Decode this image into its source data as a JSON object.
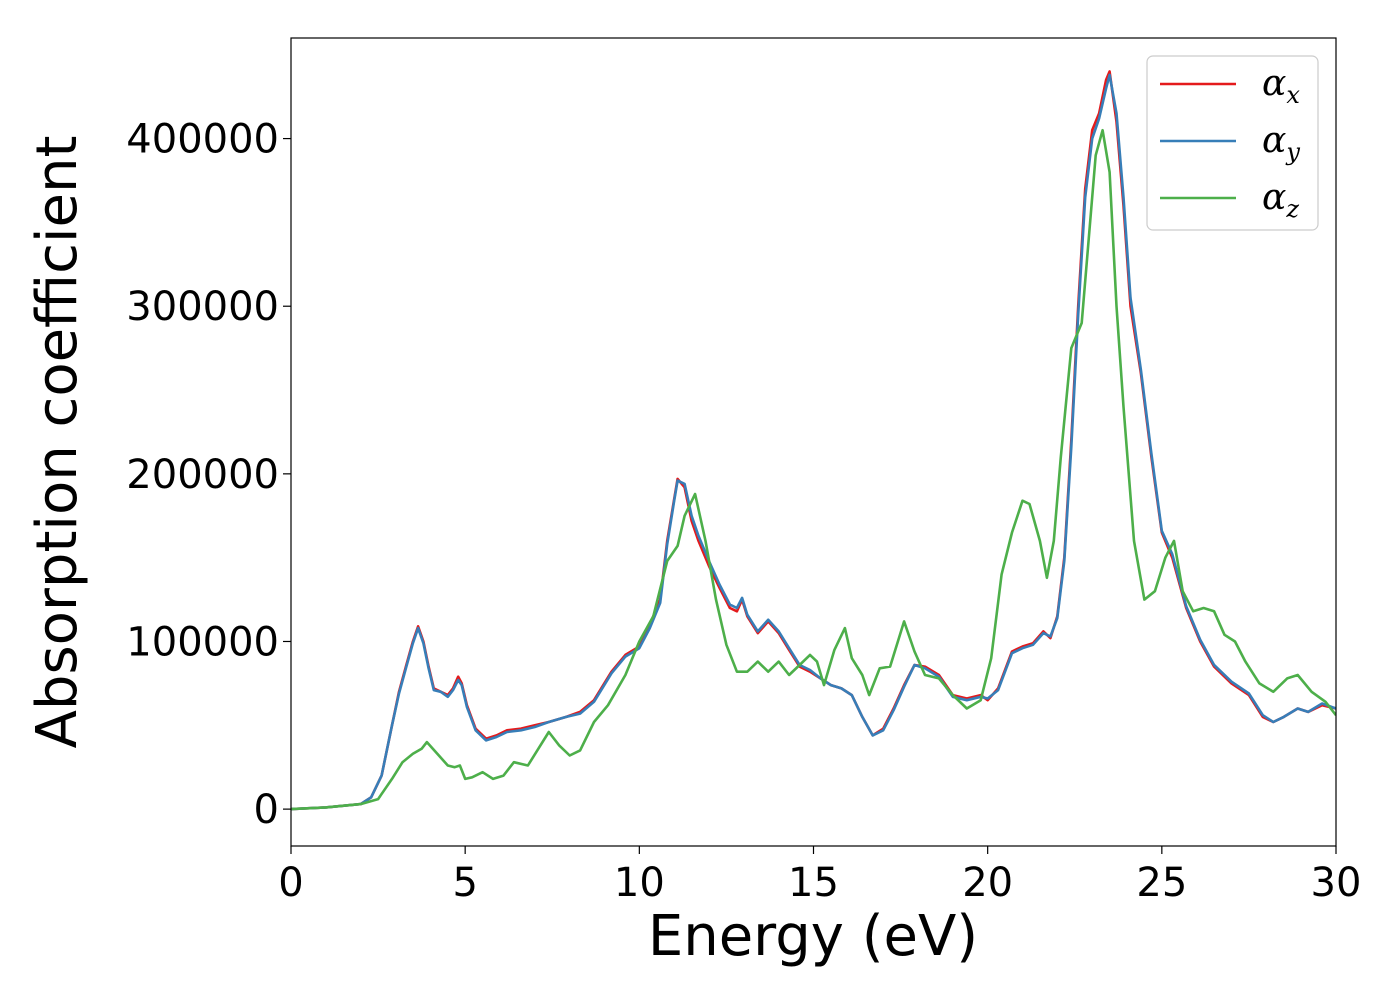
{
  "chart_data": {
    "type": "line",
    "xlabel": "Energy (eV)",
    "ylabel": "Absorption coefficient",
    "xlim": [
      0,
      30
    ],
    "ylim": [
      -22000,
      460000
    ],
    "xticks": [
      0,
      5,
      10,
      15,
      20,
      25,
      30
    ],
    "yticks": [
      0,
      100000,
      200000,
      300000,
      400000
    ],
    "grid": false,
    "legend_position": "top-right",
    "series": [
      {
        "name": "αx",
        "legend_base": "α",
        "legend_sub": "x",
        "color": "#e41a1c",
        "x": [
          0,
          1,
          2,
          2.3,
          2.6,
          2.9,
          3.1,
          3.3,
          3.5,
          3.65,
          3.8,
          3.95,
          4.1,
          4.3,
          4.5,
          4.65,
          4.8,
          4.9,
          5.05,
          5.3,
          5.6,
          5.9,
          6.2,
          6.6,
          7,
          7.4,
          7.9,
          8.3,
          8.7,
          9.2,
          9.6,
          10,
          10.3,
          10.6,
          10.8,
          11,
          11.1,
          11.3,
          11.5,
          11.7,
          12,
          12.3,
          12.6,
          12.8,
          12.95,
          13.1,
          13.4,
          13.7,
          14,
          14.3,
          14.6,
          14.9,
          15.2,
          15.5,
          15.8,
          16.1,
          16.4,
          16.7,
          17,
          17.3,
          17.6,
          17.9,
          18.2,
          18.6,
          19,
          19.4,
          19.8,
          20,
          20.3,
          20.7,
          21,
          21.3,
          21.6,
          21.8,
          22,
          22.2,
          22.4,
          22.6,
          22.8,
          23,
          23.2,
          23.4,
          23.5,
          23.7,
          23.9,
          24.1,
          24.4,
          24.7,
          25,
          25.3,
          25.7,
          26.1,
          26.5,
          27,
          27.5,
          27.9,
          28.2,
          28.5,
          28.9,
          29.2,
          29.6,
          30
        ],
        "y": [
          0,
          1000,
          3000,
          7000,
          20000,
          50000,
          70000,
          85000,
          100000,
          109000,
          100000,
          85000,
          72000,
          70000,
          68000,
          72000,
          79000,
          75000,
          62000,
          48000,
          42000,
          44000,
          47000,
          48000,
          50000,
          52000,
          55000,
          58000,
          65000,
          82000,
          92000,
          97000,
          110000,
          125000,
          160000,
          185000,
          197000,
          192000,
          172000,
          160000,
          145000,
          132000,
          120000,
          118000,
          125000,
          115000,
          105000,
          112000,
          105000,
          95000,
          85000,
          82000,
          78000,
          74000,
          72000,
          68000,
          55000,
          44000,
          48000,
          60000,
          74000,
          86000,
          85000,
          80000,
          68000,
          66000,
          68000,
          65000,
          72000,
          94000,
          97000,
          99000,
          106000,
          102000,
          115000,
          150000,
          220000,
          300000,
          370000,
          405000,
          415000,
          435000,
          440000,
          410000,
          360000,
          300000,
          260000,
          210000,
          165000,
          150000,
          120000,
          100000,
          85000,
          75000,
          68000,
          55000,
          52000,
          55000,
          60000,
          58000,
          62000,
          60000
        ]
      },
      {
        "name": "αy",
        "legend_base": "α",
        "legend_sub": "y",
        "color": "#377eb8",
        "x": [
          0,
          1,
          2,
          2.3,
          2.6,
          2.9,
          3.1,
          3.3,
          3.5,
          3.65,
          3.8,
          3.95,
          4.1,
          4.3,
          4.5,
          4.65,
          4.8,
          4.9,
          5.05,
          5.3,
          5.6,
          5.9,
          6.2,
          6.6,
          7,
          7.4,
          7.9,
          8.3,
          8.7,
          9.2,
          9.6,
          10,
          10.3,
          10.6,
          10.8,
          11,
          11.1,
          11.3,
          11.5,
          11.7,
          12,
          12.3,
          12.6,
          12.8,
          12.95,
          13.1,
          13.4,
          13.7,
          14,
          14.3,
          14.6,
          14.9,
          15.2,
          15.5,
          15.8,
          16.1,
          16.4,
          16.7,
          17,
          17.3,
          17.6,
          17.9,
          18.2,
          18.6,
          19,
          19.4,
          19.8,
          20,
          20.3,
          20.7,
          21,
          21.3,
          21.6,
          21.8,
          22,
          22.2,
          22.4,
          22.6,
          22.8,
          23,
          23.2,
          23.4,
          23.5,
          23.7,
          23.9,
          24.1,
          24.4,
          24.7,
          25,
          25.3,
          25.7,
          26.1,
          26.5,
          27,
          27.5,
          27.9,
          28.2,
          28.5,
          28.9,
          29.2,
          29.6,
          30
        ],
        "y": [
          0,
          1000,
          3000,
          7000,
          20000,
          50000,
          69000,
          84000,
          99000,
          108000,
          99000,
          84000,
          71000,
          70000,
          67000,
          71000,
          77000,
          74000,
          61000,
          47000,
          41000,
          43000,
          46000,
          47000,
          49000,
          52000,
          55000,
          57000,
          64000,
          81000,
          91000,
          96000,
          108000,
          123000,
          158000,
          184000,
          196000,
          194000,
          175000,
          163000,
          148000,
          134000,
          122000,
          120000,
          126000,
          116000,
          106000,
          113000,
          106000,
          96000,
          86000,
          83000,
          78000,
          74000,
          72000,
          68000,
          55000,
          44000,
          47000,
          59000,
          73000,
          86000,
          84000,
          79000,
          67000,
          65000,
          67000,
          66000,
          71000,
          93000,
          96000,
          98000,
          105000,
          103000,
          114000,
          148000,
          216000,
          295000,
          365000,
          400000,
          412000,
          430000,
          438000,
          415000,
          365000,
          305000,
          262000,
          212000,
          166000,
          152000,
          121000,
          101000,
          86000,
          76000,
          69000,
          56000,
          52000,
          55000,
          60000,
          58000,
          63000,
          60000
        ]
      },
      {
        "name": "αz",
        "legend_base": "α",
        "legend_sub": "z",
        "color": "#4daf4a",
        "x": [
          0,
          1,
          2,
          2.5,
          2.9,
          3.2,
          3.5,
          3.75,
          3.9,
          4.2,
          4.5,
          4.7,
          4.85,
          5,
          5.2,
          5.5,
          5.8,
          6.1,
          6.4,
          6.8,
          7.1,
          7.4,
          7.7,
          8,
          8.3,
          8.7,
          9.1,
          9.6,
          10,
          10.4,
          10.8,
          11.1,
          11.3,
          11.6,
          11.9,
          12.2,
          12.5,
          12.8,
          13.1,
          13.4,
          13.7,
          14,
          14.3,
          14.6,
          14.9,
          15.1,
          15.3,
          15.6,
          15.9,
          16.1,
          16.4,
          16.6,
          16.9,
          17.2,
          17.6,
          17.9,
          18.2,
          18.6,
          19,
          19.4,
          19.8,
          20.1,
          20.4,
          20.7,
          21,
          21.2,
          21.5,
          21.7,
          21.9,
          22.1,
          22.4,
          22.7,
          22.9,
          23.1,
          23.3,
          23.5,
          23.7,
          23.9,
          24.2,
          24.5,
          24.8,
          25.1,
          25.35,
          25.6,
          25.9,
          26.2,
          26.5,
          26.8,
          27.1,
          27.4,
          27.8,
          28.2,
          28.6,
          28.9,
          29.3,
          29.7,
          30
        ],
        "y": [
          0,
          1000,
          3000,
          6000,
          18000,
          28000,
          33000,
          36000,
          40000,
          33000,
          26000,
          25000,
          26000,
          18000,
          19000,
          22000,
          18000,
          20000,
          28000,
          26000,
          36000,
          46000,
          38000,
          32000,
          35000,
          52000,
          62000,
          80000,
          100000,
          115000,
          148000,
          157000,
          175000,
          188000,
          160000,
          125000,
          98000,
          82000,
          82000,
          88000,
          82000,
          88000,
          80000,
          86000,
          92000,
          88000,
          74000,
          95000,
          108000,
          90000,
          80000,
          68000,
          84000,
          85000,
          112000,
          94000,
          80000,
          78000,
          68000,
          60000,
          65000,
          90000,
          140000,
          165000,
          184000,
          182000,
          160000,
          138000,
          160000,
          210000,
          275000,
          290000,
          340000,
          390000,
          405000,
          380000,
          300000,
          240000,
          160000,
          125000,
          130000,
          150000,
          160000,
          130000,
          118000,
          120000,
          118000,
          104000,
          100000,
          88000,
          75000,
          70000,
          78000,
          80000,
          70000,
          64000,
          56000
        ]
      }
    ]
  }
}
